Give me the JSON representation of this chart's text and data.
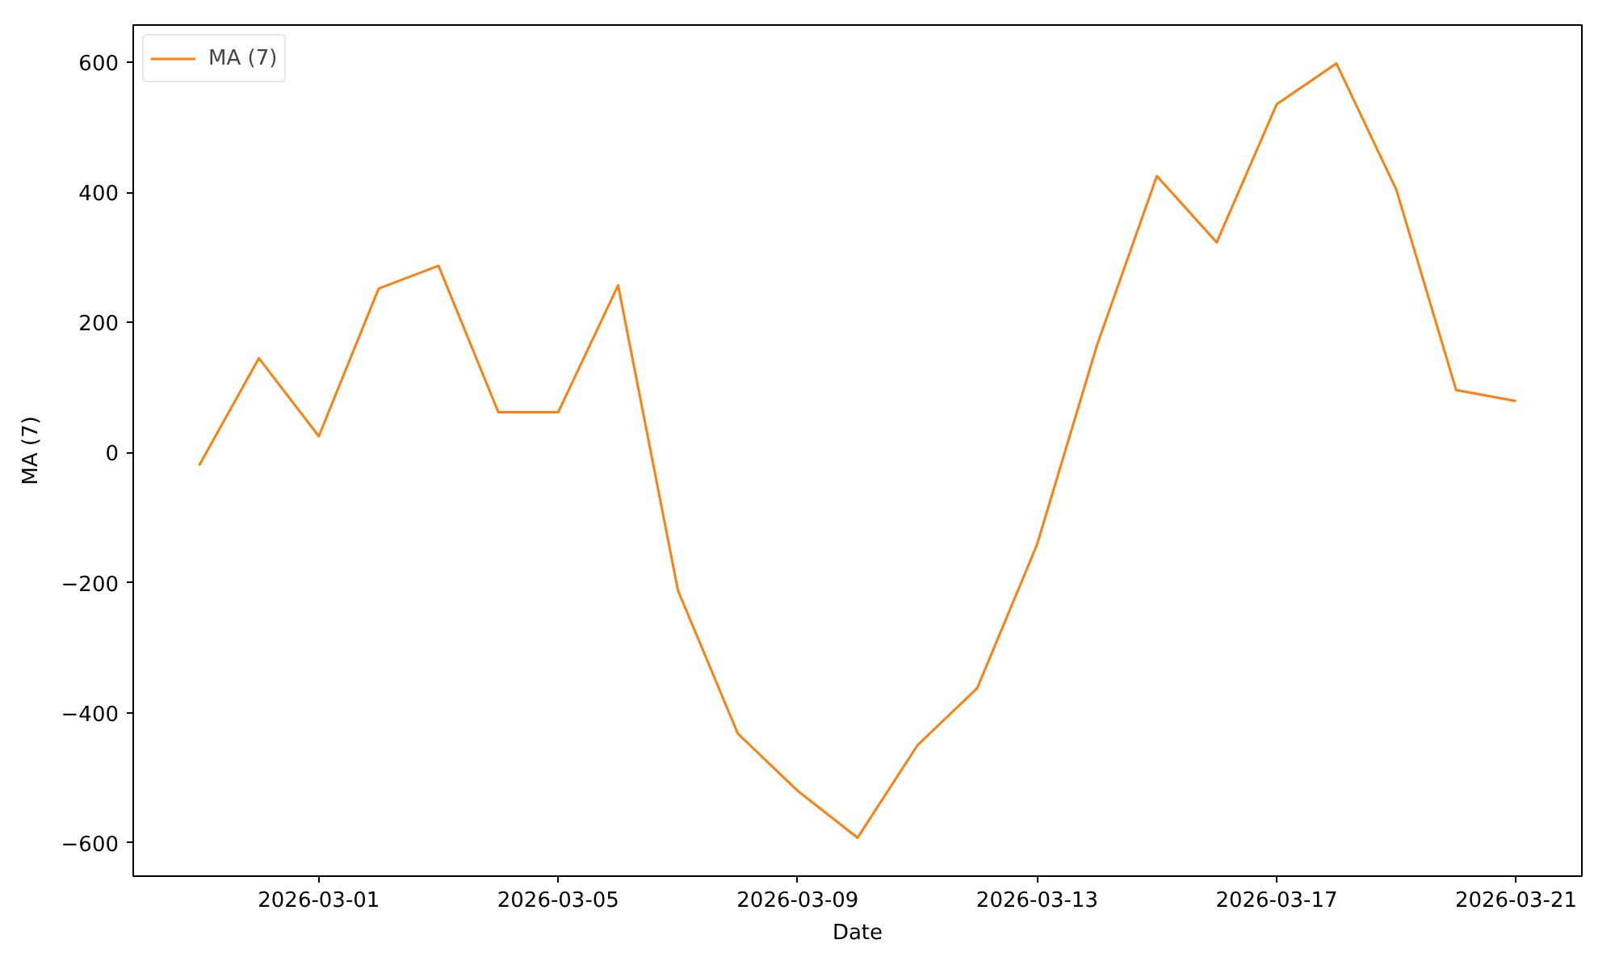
{
  "chart_data": {
    "type": "line",
    "xlabel": "Date",
    "ylabel": "MA (7)",
    "x": [
      "2026-02-27",
      "2026-02-28",
      "2026-03-01",
      "2026-03-02",
      "2026-03-03",
      "2026-03-04",
      "2026-03-05",
      "2026-03-06",
      "2026-03-07",
      "2026-03-08",
      "2026-03-09",
      "2026-03-10",
      "2026-03-11",
      "2026-03-12",
      "2026-03-13",
      "2026-03-14",
      "2026-03-15",
      "2026-03-16",
      "2026-03-17",
      "2026-03-18",
      "2026-03-19",
      "2026-03-20",
      "2026-03-21"
    ],
    "series": [
      {
        "name": "MA (7)",
        "color": "#ff7f0e",
        "values": [
          -20,
          145,
          25,
          252,
          287,
          62,
          62,
          257,
          -212,
          -432,
          -520,
          -592,
          -450,
          -362,
          -141,
          165,
          425,
          323,
          535,
          598,
          404,
          96,
          79
        ]
      }
    ],
    "xlim": [
      "2026-02-25T21:36",
      "2026-03-22T02:24"
    ],
    "xticks": [
      "2026-03-01",
      "2026-03-05",
      "2026-03-09",
      "2026-03-13",
      "2026-03-17",
      "2026-03-21"
    ],
    "ylim": [
      -651,
      657
    ],
    "yticks": [
      {
        "value": -600,
        "label": "−600"
      },
      {
        "value": -400,
        "label": "−400"
      },
      {
        "value": -200,
        "label": "−200"
      },
      0,
      200,
      400,
      600
    ],
    "legend": "top left",
    "line_style": "solid"
  }
}
